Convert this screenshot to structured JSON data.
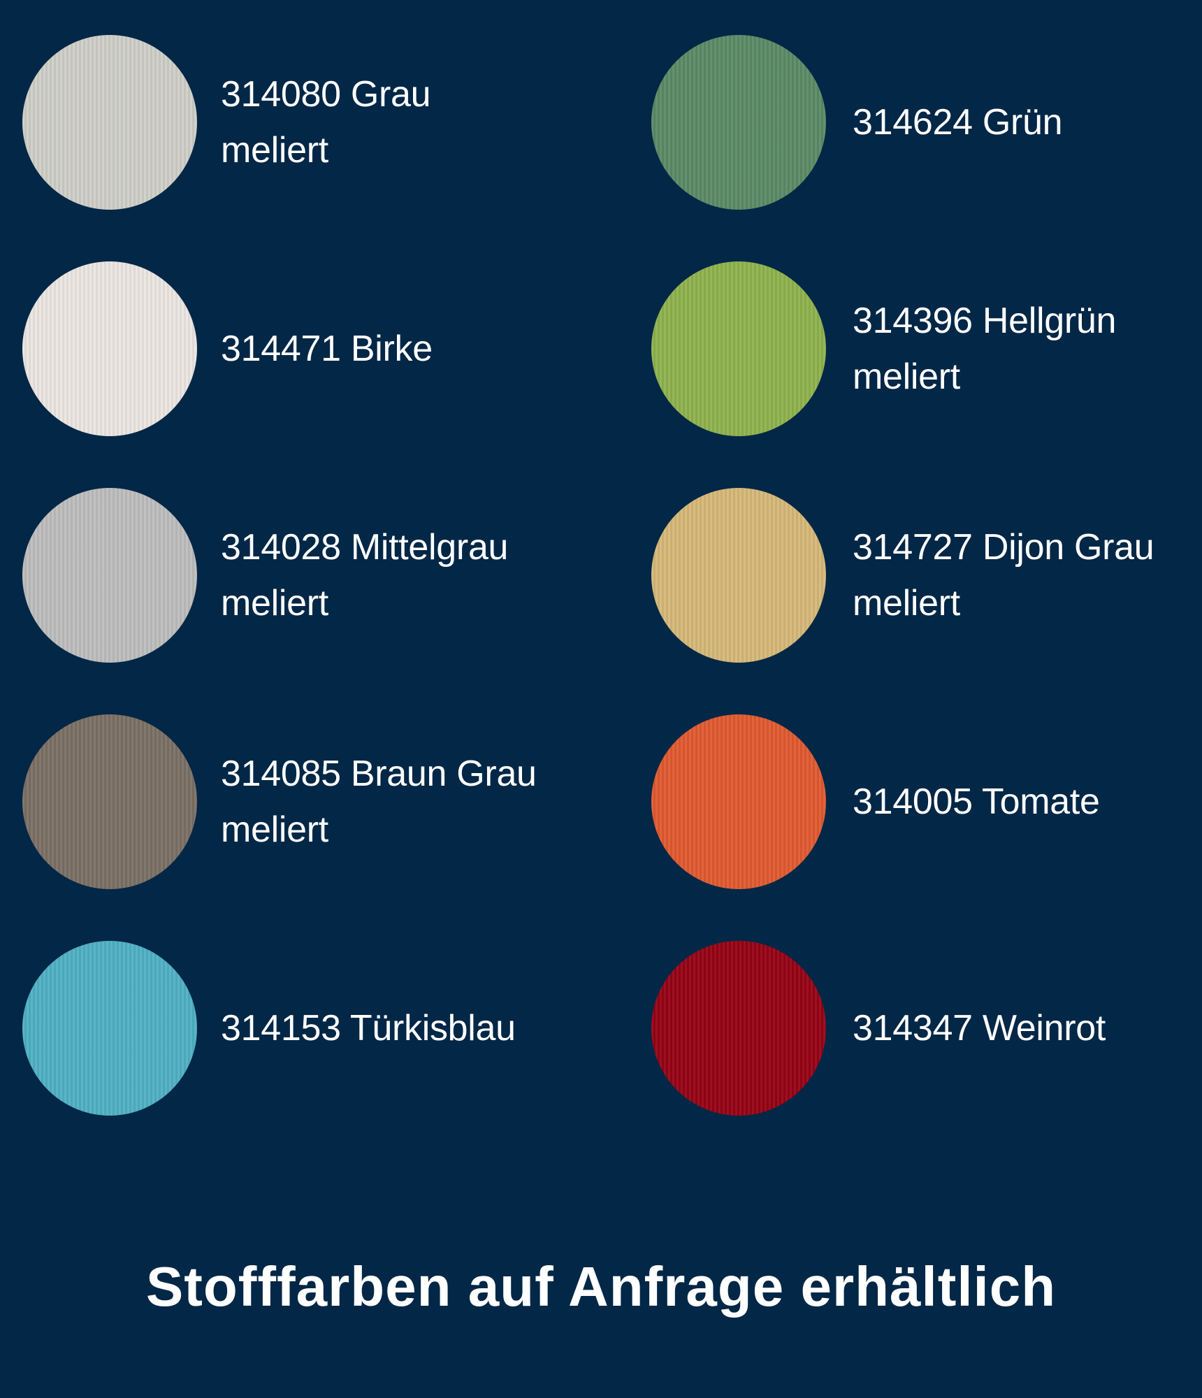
{
  "swatches": [
    {
      "code_name": "314080 Grau meliert",
      "color": "#cfcfc8"
    },
    {
      "code_name": "314624 Grün",
      "color": "#5b8a66"
    },
    {
      "code_name": "314471 Birke",
      "color": "#ebe6e2"
    },
    {
      "code_name": "314396 Hellgrün meliert",
      "color": "#8fb24e"
    },
    {
      "code_name": "314028 Mittelgrau meliert",
      "color": "#bdbdbd"
    },
    {
      "code_name": "314727 Dijon Grau meliert",
      "color": "#d6b878"
    },
    {
      "code_name": "314085 Braun Grau meliert",
      "color": "#7b7065"
    },
    {
      "code_name": "314005 Tomate",
      "color": "#e05a30"
    },
    {
      "code_name": "314153 Türkisblau",
      "color": "#4fb0c4"
    },
    {
      "code_name": "314347 Weinrot",
      "color": "#960214"
    }
  ],
  "caption": "Stofffarben auf Anfrage erhältlich",
  "background": "#032746"
}
